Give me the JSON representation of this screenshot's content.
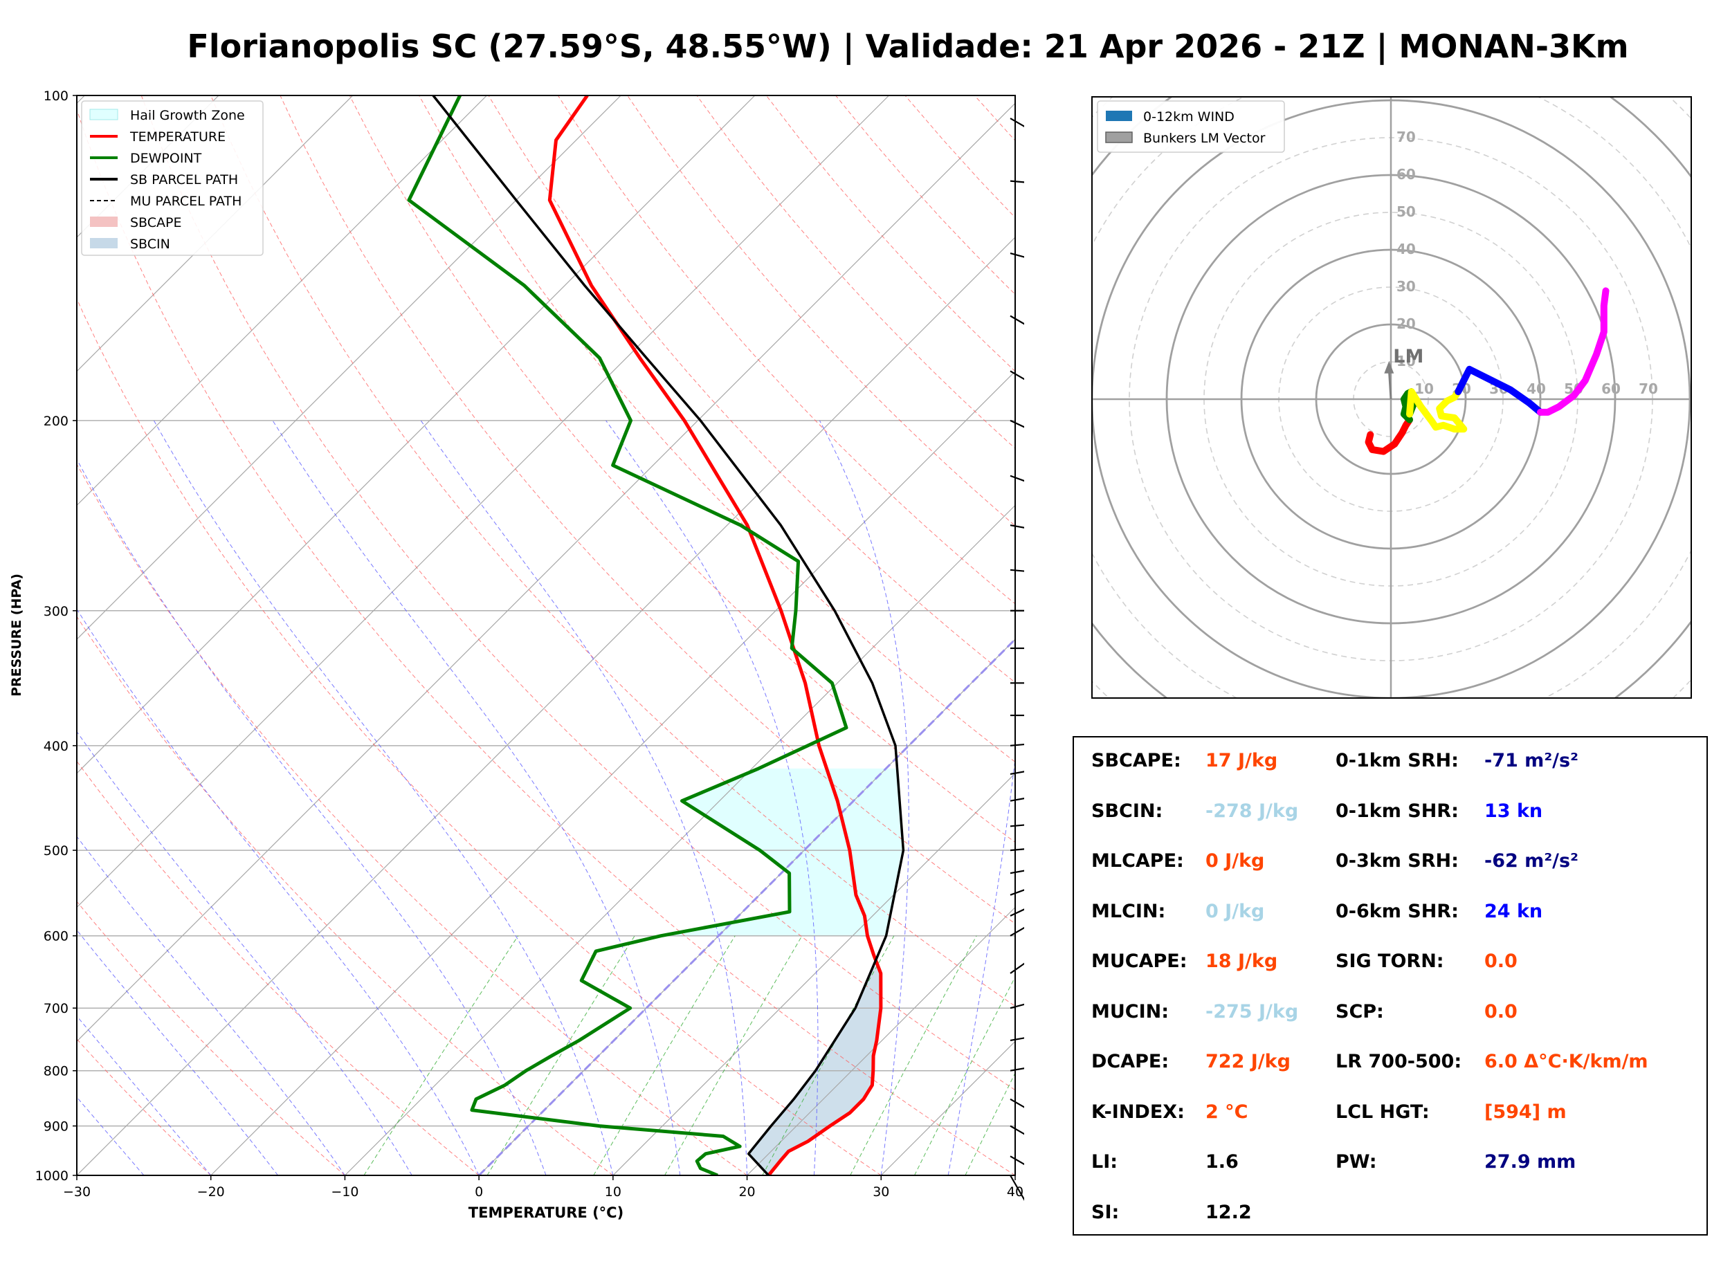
{
  "title": "Florianopolis SC (27.59°S, 48.55°W) | Validade: 21 Apr 2026 - 21Z | MONAN-3Km",
  "chart_data": [
    {
      "type": "line",
      "chart": "skew-t",
      "xlabel": "TEMPERATURE (°C)",
      "ylabel": "PRESSURE (HPA)",
      "xlim": [
        -30,
        40
      ],
      "ylim": [
        1000,
        100
      ],
      "yscale": "log",
      "x_ticks": [
        "−30",
        "−20",
        "−10",
        "0",
        "10",
        "20",
        "30",
        "40"
      ],
      "x_tick_values": [
        -30,
        -20,
        -10,
        0,
        10,
        20,
        30,
        40
      ],
      "y_ticks": [
        "1000",
        "900",
        "800",
        "700",
        "600",
        "500",
        "400",
        "300",
        "200",
        "100"
      ],
      "y_tick_values": [
        1000,
        900,
        800,
        700,
        600,
        500,
        400,
        300,
        200,
        100
      ],
      "grid": true,
      "legend_position": "top-left",
      "legend": [
        {
          "label": "Hail Growth Zone",
          "color": "#e0ffff",
          "style": "patch"
        },
        {
          "label": "TEMPERATURE",
          "color": "#ff0000",
          "style": "line"
        },
        {
          "label": "DEWPOINT",
          "color": "#008000",
          "style": "line"
        },
        {
          "label": "SB PARCEL PATH",
          "color": "#000000",
          "style": "line"
        },
        {
          "label": "MU PARCEL PATH",
          "color": "#000000",
          "style": "dashed"
        },
        {
          "label": "SBCAPE",
          "color": "#f4c2c2",
          "style": "patch"
        },
        {
          "label": "SBCIN",
          "color": "#c6d9e8",
          "style": "patch"
        }
      ],
      "series": [
        {
          "name": "TEMPERATURE",
          "color": "#ff0000",
          "points": [
            [
              1000,
              21.6
            ],
            [
              970,
              21.4
            ],
            [
              950,
              21.3
            ],
            [
              930,
              22.0
            ],
            [
              900,
              22.5
            ],
            [
              875,
              23.0
            ],
            [
              850,
              23.0
            ],
            [
              825,
              22.6
            ],
            [
              800,
              21.6
            ],
            [
              775,
              20.5
            ],
            [
              750,
              19.6
            ],
            [
              700,
              17.5
            ],
            [
              650,
              14.9
            ],
            [
              625,
              13.0
            ],
            [
              600,
              11.1
            ],
            [
              575,
              9.4
            ],
            [
              550,
              7.2
            ],
            [
              500,
              3.4
            ],
            [
              450,
              -1.2
            ],
            [
              400,
              -6.7
            ],
            [
              350,
              -12.4
            ],
            [
              300,
              -19.6
            ],
            [
              250,
              -28.5
            ],
            [
              200,
              -41.0
            ],
            [
              175,
              -49.0
            ],
            [
              150,
              -58.0
            ],
            [
              125,
              -67.5
            ],
            [
              110,
              -71.5
            ],
            [
              100,
              -72.5
            ]
          ]
        },
        {
          "name": "DEWPOINT",
          "color": "#008000",
          "points": [
            [
              1000,
              17.8
            ],
            [
              985,
              16.0
            ],
            [
              970,
              15.2
            ],
            [
              955,
              15.3
            ],
            [
              940,
              17.3
            ],
            [
              920,
              15.3
            ],
            [
              900,
              5.3
            ],
            [
              870,
              -5.4
            ],
            [
              850,
              -5.9
            ],
            [
              825,
              -4.8
            ],
            [
              800,
              -4.3
            ],
            [
              775,
              -3.5
            ],
            [
              750,
              -2.6
            ],
            [
              700,
              -1.2
            ],
            [
              660,
              -6.9
            ],
            [
              620,
              -8.0
            ],
            [
              600,
              -4.3
            ],
            [
              570,
              3.5
            ],
            [
              525,
              0.6
            ],
            [
              500,
              -3.3
            ],
            [
              450,
              -12.8
            ],
            [
              420,
              -9.5
            ],
            [
              385,
              -6.0
            ],
            [
              350,
              -10.4
            ],
            [
              325,
              -16.0
            ],
            [
              300,
              -18.5
            ],
            [
              270,
              -22.0
            ],
            [
              250,
              -29.0
            ],
            [
              220,
              -43.0
            ],
            [
              200,
              -45.0
            ],
            [
              175,
              -52.0
            ],
            [
              150,
              -63.0
            ],
            [
              125,
              -78.0
            ],
            [
              100,
              -82.0
            ]
          ]
        },
        {
          "name": "SB PARCEL PATH",
          "color": "#000000",
          "points": [
            [
              1000,
              21.6
            ],
            [
              955,
              18.5
            ],
            [
              900,
              18.1
            ],
            [
              850,
              17.8
            ],
            [
              800,
              17.3
            ],
            [
              700,
              15.6
            ],
            [
              600,
              12.5
            ],
            [
              500,
              7.4
            ],
            [
              400,
              -1.0
            ],
            [
              350,
              -7.4
            ],
            [
              300,
              -15.6
            ],
            [
              250,
              -26.0
            ],
            [
              200,
              -39.8
            ],
            [
              175,
              -48.5
            ],
            [
              150,
              -58.5
            ],
            [
              125,
              -70.0
            ],
            [
              100,
              -84.0
            ]
          ]
        }
      ],
      "hail_growth_zone_hpa": [
        600,
        420
      ],
      "sbcin_layer_hpa": [
        1000,
        640
      ],
      "wind_barbs": [
        {
          "p": 1000,
          "dir": 330,
          "spd": 15
        },
        {
          "p": 960,
          "dir": 300,
          "spd": 10
        },
        {
          "p": 900,
          "dir": 300,
          "spd": 5
        },
        {
          "p": 850,
          "dir": 300,
          "spd": 5
        },
        {
          "p": 800,
          "dir": 260,
          "spd": 10
        },
        {
          "p": 750,
          "dir": 260,
          "spd": 10
        },
        {
          "p": 700,
          "dir": 255,
          "spd": 10
        },
        {
          "p": 650,
          "dir": 235,
          "spd": 15
        },
        {
          "p": 600,
          "dir": 240,
          "spd": 15
        },
        {
          "p": 575,
          "dir": 245,
          "spd": 15
        },
        {
          "p": 550,
          "dir": 250,
          "spd": 20
        },
        {
          "p": 525,
          "dir": 260,
          "spd": 20
        },
        {
          "p": 500,
          "dir": 265,
          "spd": 20
        },
        {
          "p": 475,
          "dir": 265,
          "spd": 20
        },
        {
          "p": 450,
          "dir": 260,
          "spd": 25
        },
        {
          "p": 425,
          "dir": 260,
          "spd": 25
        },
        {
          "p": 400,
          "dir": 265,
          "spd": 30
        },
        {
          "p": 375,
          "dir": 270,
          "spd": 35
        },
        {
          "p": 350,
          "dir": 270,
          "spd": 40
        },
        {
          "p": 325,
          "dir": 270,
          "spd": 40
        },
        {
          "p": 300,
          "dir": 270,
          "spd": 35
        },
        {
          "p": 275,
          "dir": 275,
          "spd": 50
        },
        {
          "p": 250,
          "dir": 280,
          "spd": 55
        },
        {
          "p": 225,
          "dir": 290,
          "spd": 55
        },
        {
          "p": 200,
          "dir": 295,
          "spd": 55
        },
        {
          "p": 180,
          "dir": 300,
          "spd": 50
        },
        {
          "p": 160,
          "dir": 300,
          "spd": 40
        },
        {
          "p": 140,
          "dir": 285,
          "spd": 30
        },
        {
          "p": 120,
          "dir": 275,
          "spd": 30
        },
        {
          "p": 105,
          "dir": 300,
          "spd": 25
        }
      ]
    },
    {
      "type": "line",
      "chart": "hodograph",
      "radial_ticks": [
        "10",
        "20",
        "30",
        "40",
        "50",
        "60",
        "70"
      ],
      "radial_tick_values": [
        10,
        20,
        30,
        40,
        50,
        60,
        70
      ],
      "rmax": 80,
      "legend_position": "top-left",
      "legend": [
        {
          "label": "0-12km WIND",
          "color": "#1f77b4"
        },
        {
          "label": "Bunkers LM Vector",
          "color": "#a0a0a0"
        }
      ],
      "bunkers_lm_label": "LM",
      "bunkers_lm_vector": [
        -0.5,
        8
      ],
      "segments": [
        {
          "color": "#ff0000",
          "points": [
            [
              -5.5,
              -9.5
            ],
            [
              -6,
              -11.5
            ],
            [
              -5,
              -13.5
            ],
            [
              -2,
              -14
            ],
            [
              1,
              -12
            ],
            [
              3,
              -9
            ],
            [
              4,
              -7
            ],
            [
              5,
              -5.5
            ]
          ]
        },
        {
          "color": "#008000",
          "points": [
            [
              5,
              -5.5
            ],
            [
              3.5,
              -4
            ],
            [
              4,
              -2
            ],
            [
              3.5,
              0
            ],
            [
              4.5,
              1.5
            ],
            [
              5.5,
              2
            ],
            [
              5,
              0
            ],
            [
              6,
              -1.5
            ],
            [
              5,
              -4
            ]
          ]
        },
        {
          "color": "#ffff00",
          "points": [
            [
              5,
              -4
            ],
            [
              5.5,
              2
            ],
            [
              8,
              -2
            ],
            [
              11,
              -6
            ],
            [
              12,
              -7.5
            ],
            [
              14,
              -7
            ],
            [
              17,
              -8
            ],
            [
              19.5,
              -8
            ],
            [
              17,
              -5
            ],
            [
              13.5,
              -4.5
            ],
            [
              13,
              -2.5
            ],
            [
              15,
              -0.5
            ],
            [
              17,
              0.5
            ],
            [
              18,
              2
            ]
          ]
        },
        {
          "color": "#0000ff",
          "points": [
            [
              18,
              2
            ],
            [
              19,
              4
            ],
            [
              21,
              8
            ],
            [
              23,
              7
            ],
            [
              27,
              5
            ],
            [
              32,
              2.5
            ],
            [
              37,
              -1
            ],
            [
              40,
              -3.5
            ]
          ]
        },
        {
          "color": "#ff00ff",
          "points": [
            [
              40,
              -3.5
            ],
            [
              42,
              -3.5
            ],
            [
              45,
              -2
            ],
            [
              49,
              1
            ],
            [
              52,
              5
            ],
            [
              55,
              12
            ],
            [
              57,
              18
            ],
            [
              57,
              25
            ],
            [
              57.5,
              29
            ]
          ]
        }
      ]
    }
  ],
  "params_left": [
    {
      "label": "SBCAPE:",
      "value": "17 J/kg",
      "color": "#ff4500"
    },
    {
      "label": "SBCIN:",
      "value": "-278 J/kg",
      "color": "#a8d4e6"
    },
    {
      "label": "MLCAPE:",
      "value": "0 J/kg",
      "color": "#ff4500"
    },
    {
      "label": "MLCIN:",
      "value": "0 J/kg",
      "color": "#a8d4e6"
    },
    {
      "label": "MUCAPE:",
      "value": "18 J/kg",
      "color": "#ff4500"
    },
    {
      "label": "MUCIN:",
      "value": "-275 J/kg",
      "color": "#a8d4e6"
    },
    {
      "label": "DCAPE:",
      "value": "722 J/kg",
      "color": "#ff4500"
    },
    {
      "label": "K-INDEX:",
      "value": "2 °C",
      "color": "#ff4500"
    },
    {
      "label": "LI:",
      "value": "1.6",
      "color": "#000000"
    },
    {
      "label": "SI:",
      "value": "12.2",
      "color": "#000000"
    }
  ],
  "params_right": [
    {
      "label": "0-1km SRH:",
      "value": "-71 m²/s²",
      "color": "#000080"
    },
    {
      "label": "0-1km SHR:",
      "value": "13 kn",
      "color": "#0000ff"
    },
    {
      "label": "0-3km SRH:",
      "value": "-62 m²/s²",
      "color": "#000080"
    },
    {
      "label": "0-6km SHR:",
      "value": "24 kn",
      "color": "#0000ff"
    },
    {
      "label": "SIG TORN:",
      "value": "0.0",
      "color": "#ff4500"
    },
    {
      "label": "SCP:",
      "value": "0.0",
      "color": "#ff4500"
    },
    {
      "label": "LR 700-500:",
      "value": "6.0 Δ°C·K/km/m",
      "color": "#ff4500"
    },
    {
      "label": "LCL HGT:",
      "value": "[594] m",
      "color": "#ff4500"
    },
    {
      "label": "PW:",
      "value": "27.9 mm",
      "color": "#000080"
    }
  ]
}
